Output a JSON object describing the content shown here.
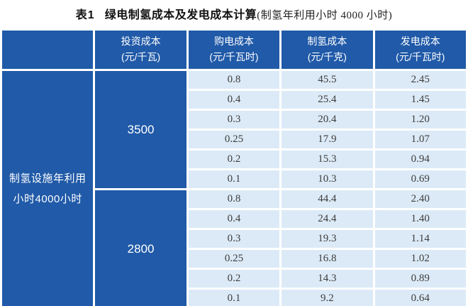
{
  "title": {
    "prefix": "表1",
    "main": "绿电制氢成本及发电成本计算",
    "note": "(制氢年利用小时 4000 小时)"
  },
  "colors": {
    "header_blue": "#205AA8",
    "cell_light_blue": "#DCEAF7",
    "data_text": "#3C3C3C"
  },
  "table": {
    "row_header": {
      "line1": "制氢设施年利用",
      "line2": "小时4000小时"
    },
    "columns": [
      {
        "label": "投资成本",
        "unit": "(元/千瓦)"
      },
      {
        "label": "购电成本",
        "unit": "(元/千瓦时)"
      },
      {
        "label": "制氢成本",
        "unit": "(元/千克)"
      },
      {
        "label": "发电成本",
        "unit": "(元/千瓦时)"
      }
    ],
    "groups": [
      {
        "investment": "3500",
        "rows": [
          [
            "0.8",
            "45.5",
            "2.45"
          ],
          [
            "0.4",
            "25.4",
            "1.45"
          ],
          [
            "0.3",
            "20.4",
            "1.20"
          ],
          [
            "0.25",
            "17.9",
            "1.07"
          ],
          [
            "0.2",
            "15.3",
            "0.94"
          ],
          [
            "0.1",
            "10.3",
            "0.69"
          ]
        ]
      },
      {
        "investment": "2800",
        "rows": [
          [
            "0.8",
            "44.4",
            "2.40"
          ],
          [
            "0.4",
            "24.4",
            "1.40"
          ],
          [
            "0.3",
            "19.3",
            "1.14"
          ],
          [
            "0.25",
            "16.8",
            "1.02"
          ],
          [
            "0.2",
            "14.3",
            "0.89"
          ],
          [
            "0.1",
            "9.2",
            "0.64"
          ]
        ]
      }
    ]
  },
  "chart_data": {
    "type": "table",
    "title": "表1 绿电制氢成本及发电成本计算(制氢年利用小时 4000 小时)",
    "row_group_label": "制氢设施年利用小时4000小时",
    "columns": [
      "投资成本(元/千瓦)",
      "购电成本(元/千瓦时)",
      "制氢成本(元/千克)",
      "发电成本(元/千瓦时)"
    ],
    "rows": [
      [
        3500,
        0.8,
        45.5,
        2.45
      ],
      [
        3500,
        0.4,
        25.4,
        1.45
      ],
      [
        3500,
        0.3,
        20.4,
        1.2
      ],
      [
        3500,
        0.25,
        17.9,
        1.07
      ],
      [
        3500,
        0.2,
        15.3,
        0.94
      ],
      [
        3500,
        0.1,
        10.3,
        0.69
      ],
      [
        2800,
        0.8,
        44.4,
        2.4
      ],
      [
        2800,
        0.4,
        24.4,
        1.4
      ],
      [
        2800,
        0.3,
        19.3,
        1.14
      ],
      [
        2800,
        0.25,
        16.8,
        1.02
      ],
      [
        2800,
        0.2,
        14.3,
        0.89
      ],
      [
        2800,
        0.1,
        9.2,
        0.64
      ]
    ]
  }
}
